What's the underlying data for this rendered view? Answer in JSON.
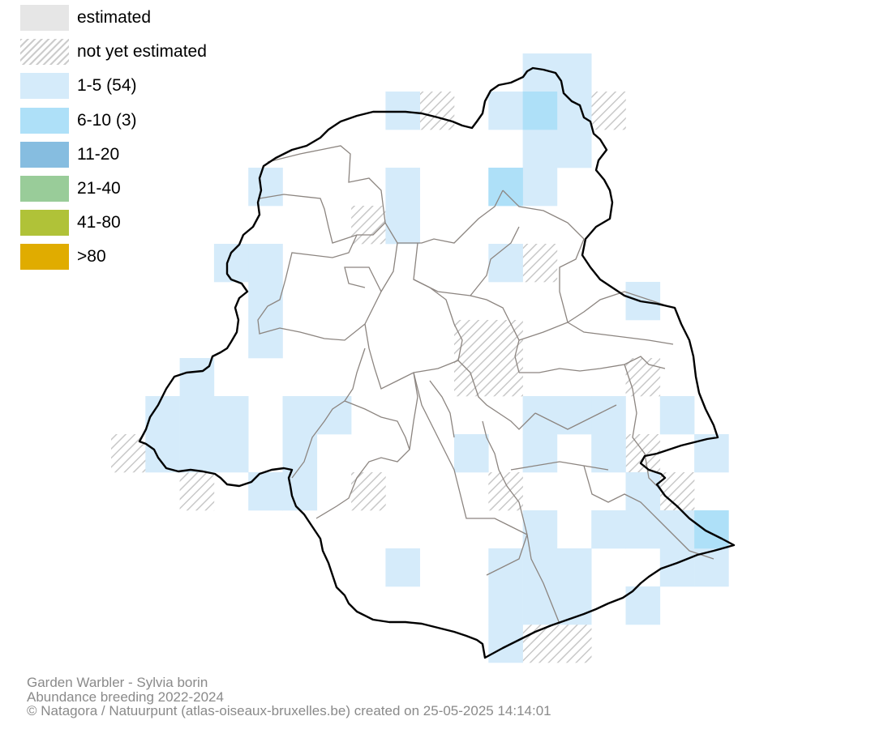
{
  "legend": {
    "items": [
      {
        "label": "estimated",
        "color": "#e6e6e6",
        "pattern": "solid"
      },
      {
        "label": "not yet estimated",
        "color": "#cccccc",
        "pattern": "hatched"
      },
      {
        "label": "1-5 (54)",
        "color": "#d5ebfa",
        "pattern": "solid"
      },
      {
        "label": "6-10 (3)",
        "color": "#aee0f8",
        "pattern": "solid"
      },
      {
        "label": "11-20",
        "color": "#86bde0",
        "pattern": "solid"
      },
      {
        "label": "21-40",
        "color": "#99cc99",
        "pattern": "solid"
      },
      {
        "label": "41-80",
        "color": "#b0c238",
        "pattern": "solid"
      },
      {
        "label": ">80",
        "color": "#e0ac00",
        "pattern": "solid"
      }
    ]
  },
  "map": {
    "region": "Brussels",
    "cells_1_5_count": 54,
    "cells_6_10_count": 3
  },
  "credits": {
    "species": "Garden Warbler - Sylvia borin",
    "dataset": "Abundance breeding 2022-2024",
    "copyright": "© Natagora / Natuurpunt (atlas-oiseaux-bruxelles.be) created on 25-05-2025 14:14:01"
  }
}
